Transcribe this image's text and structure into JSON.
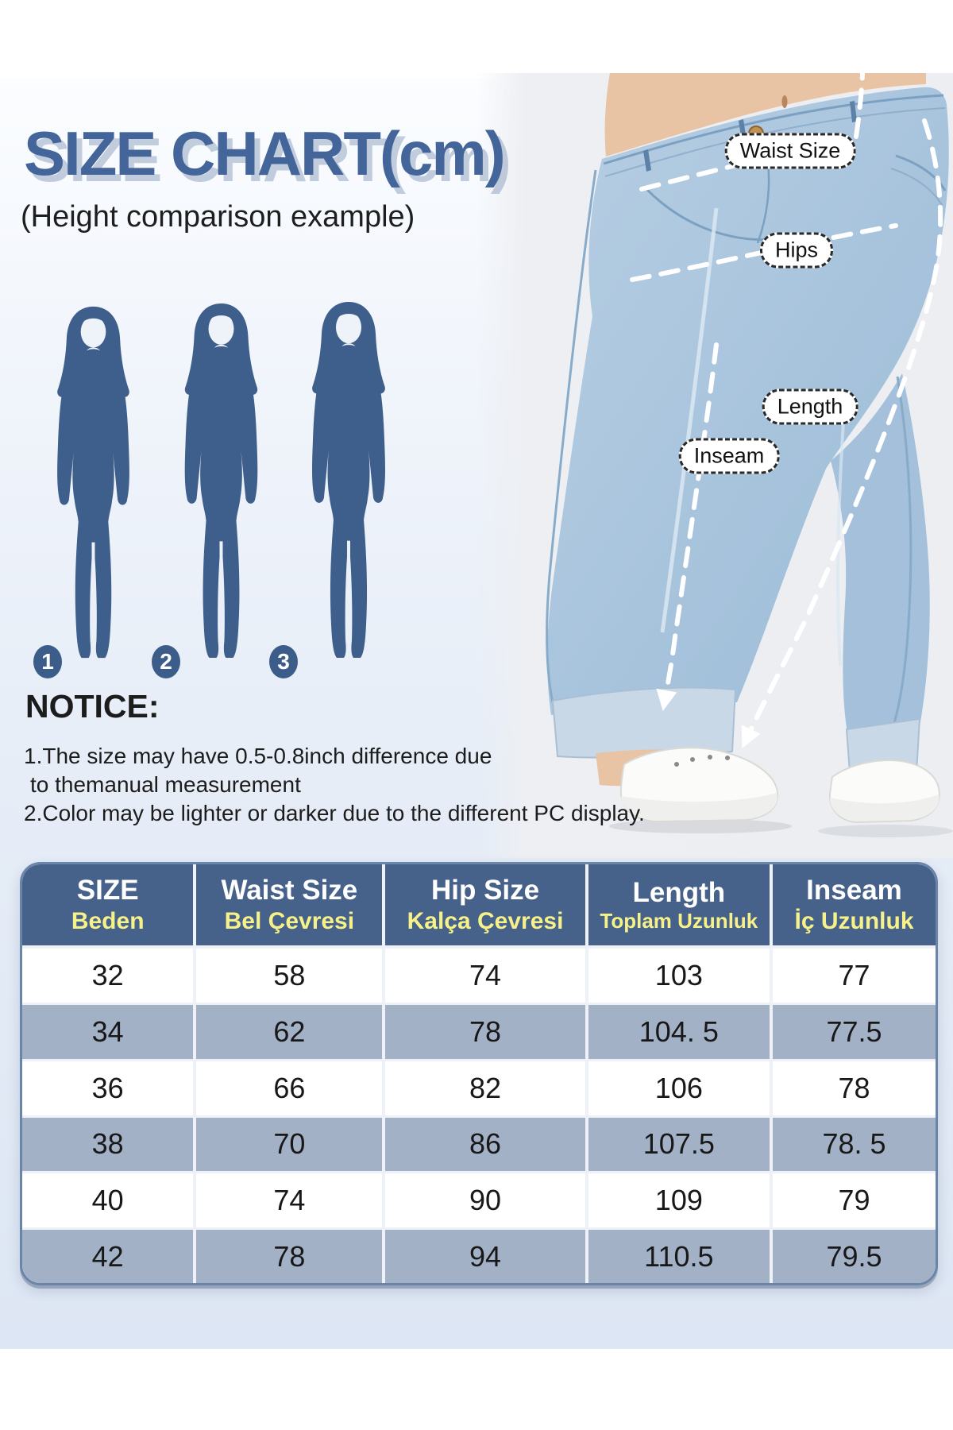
{
  "title": "SIZE CHART(cm)",
  "subtitle": "(Height comparison example)",
  "figures": {
    "numbers": [
      "1",
      "2",
      "3"
    ]
  },
  "measurement_labels": {
    "waist": "Waist Size",
    "hips": "Hips",
    "length": "Length",
    "inseam": "Inseam"
  },
  "notice": {
    "heading": "NOTICE:",
    "line1": "1.The size may have 0.5-0.8inch difference due",
    "line2": "to themanual measurement",
    "line3": "2.Color may be lighter or darker due to the different PC display."
  },
  "chart_data": {
    "type": "table",
    "unit": "cm",
    "columns": [
      {
        "en": "SIZE",
        "tr": "Beden"
      },
      {
        "en": "Waist Size",
        "tr": "Bel Çevresi"
      },
      {
        "en": "Hip Size",
        "tr": "Kalça Çevresi"
      },
      {
        "en": "Length",
        "tr": "Toplam Uzunluk"
      },
      {
        "en": "Inseam",
        "tr": "İç Uzunluk"
      }
    ],
    "rows": [
      [
        "32",
        "58",
        "74",
        "103",
        "77"
      ],
      [
        "34",
        "62",
        "78",
        "104. 5",
        "77.5"
      ],
      [
        "36",
        "66",
        "82",
        "106",
        "78"
      ],
      [
        "38",
        "70",
        "86",
        "107.5",
        "78. 5"
      ],
      [
        "40",
        "74",
        "90",
        "109",
        "79"
      ],
      [
        "42",
        "78",
        "94",
        "110.5",
        "79.5"
      ]
    ]
  },
  "colors": {
    "accent_blue": "#44659a",
    "silhouette": "#3e5f8b",
    "header_bg": "#46618a",
    "header_yellow": "#f6f289",
    "row_alt": "#a3b1c7",
    "denim": "#a9c4dd"
  }
}
